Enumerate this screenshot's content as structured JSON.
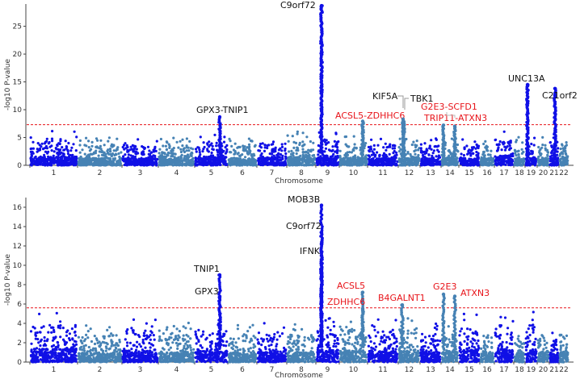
{
  "colors": {
    "dark": "#1010e6",
    "light": "#4682b4",
    "threshold": "#e8141a",
    "black_label": "#111111",
    "red_label": "#e8141a"
  },
  "chart_data": [
    {
      "type": "scatter",
      "subtype": "manhattan",
      "title": "",
      "xlabel": "Chromosome",
      "ylabel": "-log10 P-value",
      "ylim": [
        0,
        29
      ],
      "yticks": [
        0,
        5,
        10,
        15,
        20,
        25
      ],
      "threshold": 7.3,
      "chromosomes": [
        "1",
        "2",
        "3",
        "4",
        "5",
        "6",
        "7",
        "8",
        "9",
        "10",
        "11",
        "12",
        "13",
        "14",
        "15",
        "16",
        "17",
        "18",
        "19",
        "20",
        "21",
        "22"
      ],
      "background_max": [
        6.2,
        5.1,
        5.0,
        5.0,
        6.3,
        5.0,
        5.4,
        6.1,
        7.0,
        5.3,
        5.0,
        5.2,
        5.0,
        5.2,
        4.9,
        5.1,
        6.8,
        5.1,
        5.1,
        5.2,
        5.0,
        5.6
      ],
      "peaks": [
        {
          "chr": "5",
          "label": "GPX3-TNIP1",
          "max": 8.7,
          "color": "black"
        },
        {
          "chr": "9",
          "label": "C9orf72",
          "max": 28.7,
          "color": "black"
        },
        {
          "chr": "10",
          "label": "ACSL5-ZDHHC6",
          "max": 7.9,
          "color": "red"
        },
        {
          "chr": "12",
          "label": "KIF5A",
          "max": 8.3,
          "color": "black"
        },
        {
          "chr": "12",
          "label": "TBK1",
          "max": 7.8,
          "color": "black"
        },
        {
          "chr": "14",
          "label": "G2E3-SCFD1",
          "max": 7.2,
          "color": "red"
        },
        {
          "chr": "14",
          "label": "TRIP11-ATXN3",
          "max": 7.0,
          "color": "red"
        },
        {
          "chr": "19",
          "label": "UNC13A",
          "max": 14.5,
          "color": "black"
        },
        {
          "chr": "21",
          "label": "C21orf2",
          "max": 13.8,
          "color": "black"
        }
      ]
    },
    {
      "type": "scatter",
      "subtype": "manhattan",
      "title": "",
      "xlabel": "Chromosome",
      "ylabel": "-log10 P-value",
      "ylim": [
        0,
        17
      ],
      "yticks": [
        0,
        2,
        4,
        6,
        8,
        10,
        12,
        14,
        16
      ],
      "threshold": 5.6,
      "chromosomes": [
        "1",
        "2",
        "3",
        "4",
        "5",
        "6",
        "7",
        "8",
        "9",
        "10",
        "11",
        "12",
        "13",
        "14",
        "15",
        "16",
        "17",
        "18",
        "19",
        "20",
        "21",
        "22"
      ],
      "background_max": [
        5.4,
        3.9,
        4.6,
        4.1,
        4.6,
        3.9,
        4.2,
        3.9,
        5.2,
        4.8,
        4.4,
        4.9,
        4.1,
        4.5,
        5.0,
        3.9,
        5.4,
        3.8,
        5.4,
        4.1,
        3.9,
        4.0
      ],
      "peaks": [
        {
          "chr": "5",
          "label": "TNIP1",
          "max": 9.0,
          "color": "black"
        },
        {
          "chr": "5",
          "label": "GPX3",
          "max": 6.7,
          "color": "black"
        },
        {
          "chr": "9",
          "label": "MOB3B",
          "max": 16.2,
          "color": "black"
        },
        {
          "chr": "9",
          "label": "C9orf72",
          "max": 13.4,
          "color": "black"
        },
        {
          "chr": "9",
          "label": "IFNK",
          "max": 11.0,
          "color": "black"
        },
        {
          "chr": "10",
          "label": "ACSL5",
          "max": 7.2,
          "color": "red"
        },
        {
          "chr": "10",
          "label": "ZDHHC6",
          "max": 5.5,
          "color": "red"
        },
        {
          "chr": "12",
          "label": "B4GALNT1",
          "max": 5.9,
          "color": "red"
        },
        {
          "chr": "14",
          "label": "G2E3",
          "max": 7.0,
          "color": "red"
        },
        {
          "chr": "14",
          "label": "ATXN3",
          "max": 6.8,
          "color": "red"
        }
      ]
    }
  ]
}
